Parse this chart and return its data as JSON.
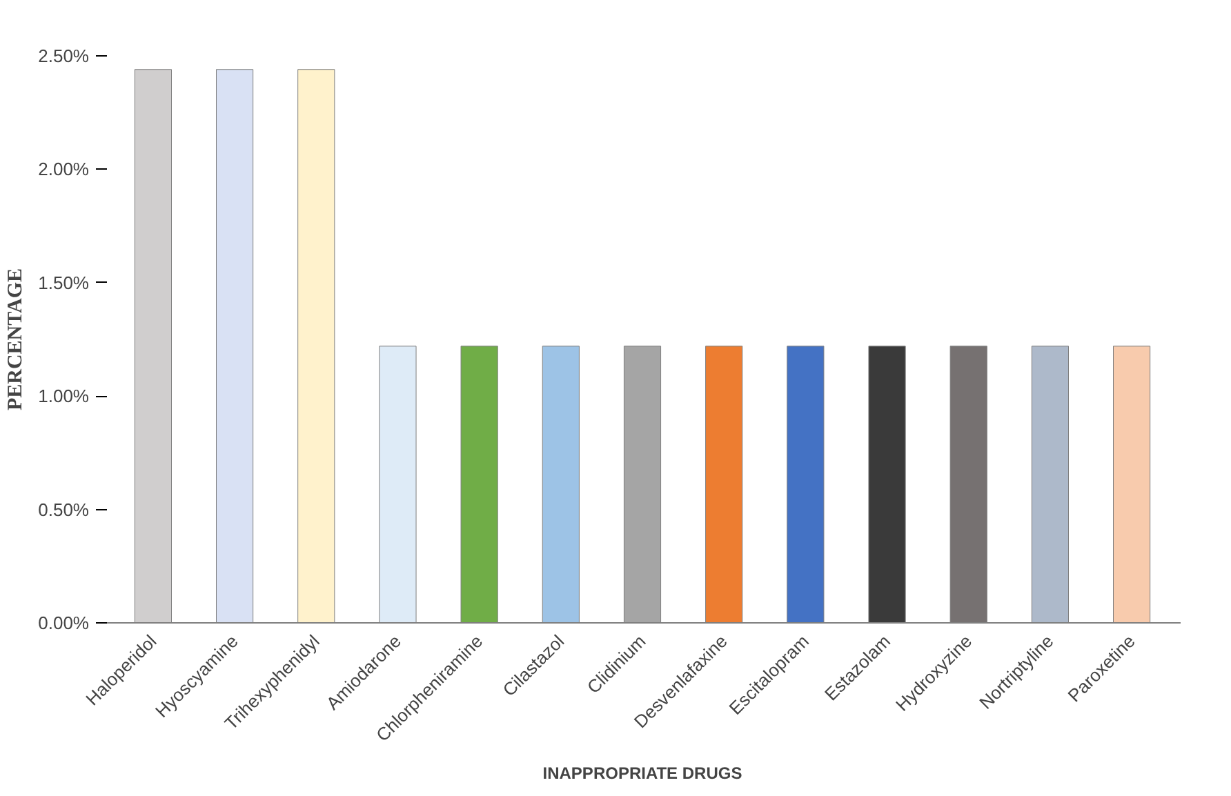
{
  "chart_data": {
    "type": "bar",
    "xlabel": "INAPPROPRIATE DRUGS",
    "ylabel": "PERCENTAGE",
    "categories": [
      "Haloperidol",
      "Hyoscyamine",
      "Trihexyphenidyl",
      "Amiodarone",
      "Chlorpheniramine",
      "Cilastazol",
      "Clidinium",
      "Desvenlafaxine",
      "Escitalopram",
      "Estazolam",
      "Hydroxyzine",
      "Nortriptyline",
      "Paroxetine"
    ],
    "values": [
      2.44,
      2.44,
      2.44,
      1.22,
      1.22,
      1.22,
      1.22,
      1.22,
      1.22,
      1.22,
      1.22,
      1.22,
      1.22
    ],
    "colors": [
      "#d0cece",
      "#d9e1f4",
      "#fff2cc",
      "#deebf7",
      "#70ad47",
      "#9dc3e6",
      "#a5a5a5",
      "#ed7d31",
      "#4472c4",
      "#3a3a3a",
      "#767171",
      "#adb9ca",
      "#f8cbad"
    ],
    "ylim": [
      0,
      2.5
    ],
    "yticks": [
      {
        "value": 0,
        "label": "0.00%"
      },
      {
        "value": 0.5,
        "label": "0.50%"
      },
      {
        "value": 1,
        "label": "1.00%"
      },
      {
        "value": 1.5,
        "label": "1.50%"
      },
      {
        "value": 2,
        "label": "2.00%"
      },
      {
        "value": 2.5,
        "label": "2.50%"
      }
    ],
    "grid": false
  }
}
